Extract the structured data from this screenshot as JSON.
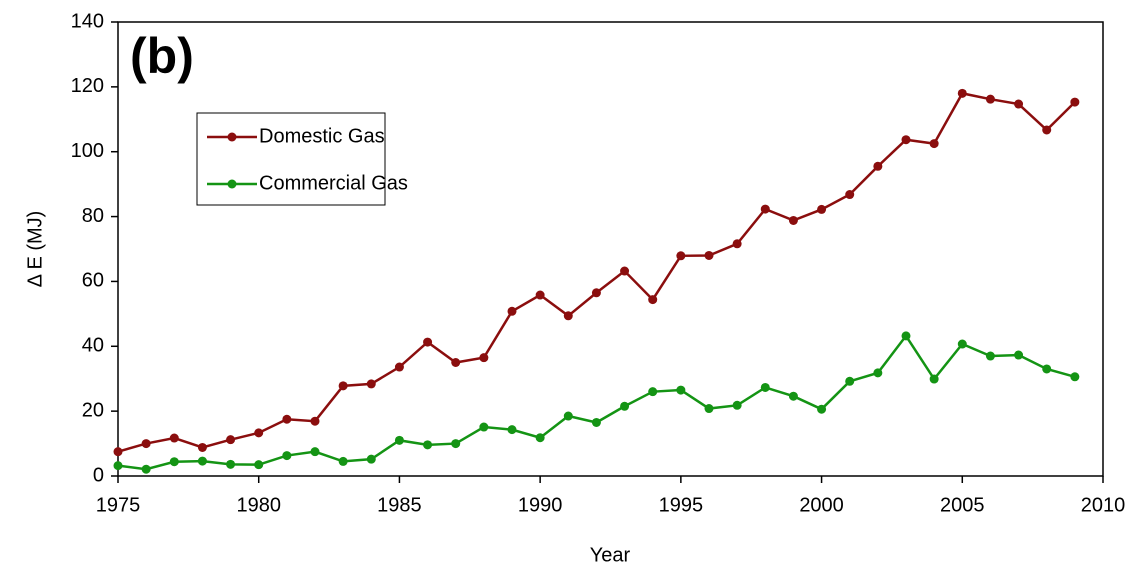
{
  "chart_data": {
    "type": "line",
    "panel_label": "(b)",
    "xlabel": "Year",
    "ylabel": "Δ E (MJ)",
    "x": [
      1975,
      1976,
      1977,
      1978,
      1979,
      1980,
      1981,
      1982,
      1983,
      1984,
      1985,
      1986,
      1987,
      1988,
      1989,
      1990,
      1991,
      1992,
      1993,
      1994,
      1995,
      1996,
      1997,
      1998,
      1999,
      2000,
      2001,
      2002,
      2003,
      2004,
      2005,
      2006,
      2007,
      2008,
      2009
    ],
    "series": [
      {
        "name": "Domestic Gas",
        "color": "#8b0e0e",
        "values": [
          7.5,
          10,
          11.7,
          8.8,
          11.2,
          13.3,
          17.5,
          16.9,
          27.8,
          28.4,
          33.6,
          41.3,
          35,
          36.5,
          50.8,
          55.8,
          49.4,
          56.5,
          63.2,
          54.4,
          67.9,
          68,
          71.6,
          82.3,
          78.8,
          82.2,
          86.8,
          95.5,
          103.7,
          102.5,
          118,
          116.2,
          114.7,
          106.7,
          115.3
        ]
      },
      {
        "name": "Commercial Gas",
        "color": "#149414",
        "values": [
          3.2,
          2.1,
          4.4,
          4.6,
          3.6,
          3.5,
          6.3,
          7.5,
          4.5,
          5.2,
          11,
          9.6,
          10,
          15.1,
          14.3,
          11.8,
          18.5,
          16.5,
          21.5,
          26,
          26.5,
          20.8,
          21.8,
          27.3,
          24.6,
          20.6,
          29.2,
          31.8,
          43.2,
          29.9,
          40.7,
          37,
          37.3,
          33,
          30.6
        ]
      }
    ],
    "xlim": [
      1975,
      2010
    ],
    "xticks": [
      1975,
      1980,
      1985,
      1990,
      1995,
      2000,
      2005,
      2010
    ],
    "ylim": [
      0,
      140
    ],
    "yticks": [
      0,
      20,
      40,
      60,
      80,
      100,
      120,
      140
    ],
    "grid": false
  }
}
